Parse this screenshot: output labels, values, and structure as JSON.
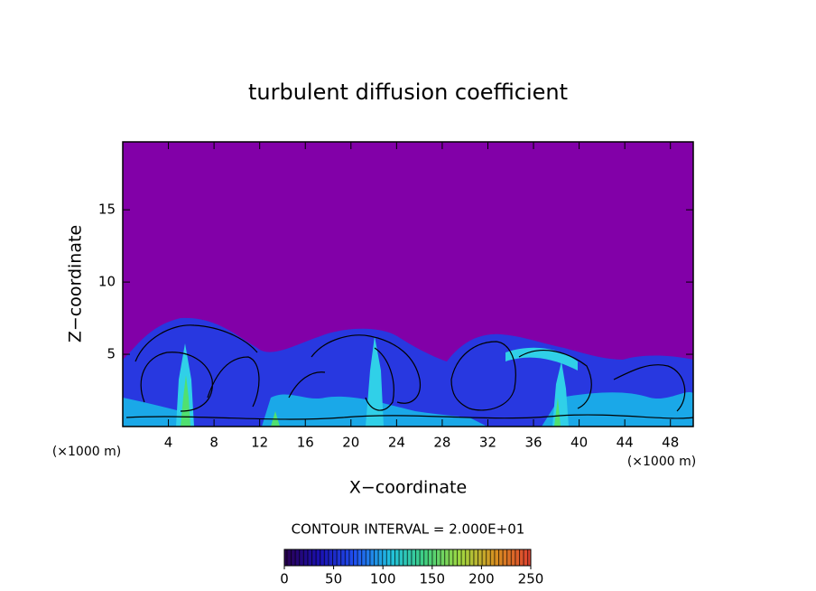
{
  "chart_data": {
    "type": "contour",
    "title": "turbulent diffusion coefficient",
    "x_label": "X−coordinate",
    "y_label": "Z−coordinate",
    "x_unit_label": "(×1000 m)",
    "y_unit_label": "(×1000 m)",
    "xlim": [
      0,
      50
    ],
    "xticks": [
      4,
      8,
      12,
      16,
      20,
      24,
      28,
      32,
      36,
      40,
      44,
      48
    ],
    "ylim": [
      0,
      19.7
    ],
    "yticks": [
      5,
      10,
      15
    ],
    "background_color": "#8200a8",
    "contour_interval_label": "CONTOUR INTERVAL = 2.000E+01",
    "colorbar": {
      "lim": [
        0,
        250
      ],
      "ticks": [
        0,
        50,
        100,
        150,
        200,
        250
      ],
      "colors": [
        "#2a0050",
        "#1a10b0",
        "#2050f0",
        "#20c0e0",
        "#40d080",
        "#a0d840",
        "#d89020",
        "#e04030"
      ]
    }
  }
}
